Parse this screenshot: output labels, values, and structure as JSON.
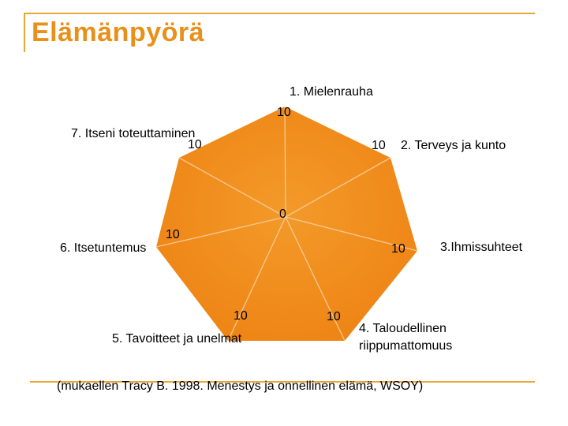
{
  "slide": {
    "title": "Elämänpyörä",
    "source": "(mukaellen Tracy B. 1998. Menestys ja onnellinen elämä, WSOY)"
  },
  "wheel": {
    "fill_color": "#f28c1c",
    "line_color": "#f5c890",
    "center_value": "0",
    "spokes": [
      {
        "label": "1. Mielenrauha",
        "value": "10"
      },
      {
        "label": "2. Terveys ja kunto",
        "value": "10"
      },
      {
        "label": "3.Ihmissuhteet",
        "value": "10"
      },
      {
        "label": "4. Taloudellinen riippumattomuus",
        "label_line1": "4. Taloudellinen",
        "label_line2": "riippumattomuus",
        "value": "10"
      },
      {
        "label": "5. Tavoitteet ja unelmat",
        "value": "10"
      },
      {
        "label": "6. Itsetuntemus",
        "value": "10"
      },
      {
        "label": "7. Itseni toteuttaminen",
        "value": "10"
      }
    ]
  }
}
